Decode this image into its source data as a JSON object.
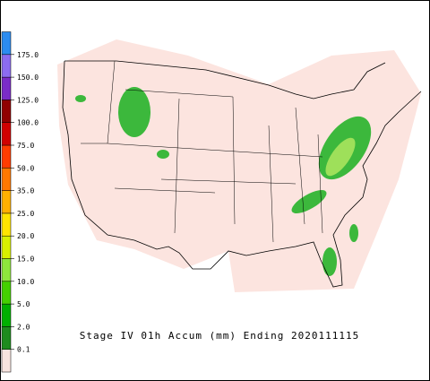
{
  "legend": {
    "labels": [
      "0.1",
      "2.0",
      "5.0",
      "10.0",
      "15.0",
      "20.0",
      "25.0",
      "35.0",
      "50.0",
      "75.0",
      "100.0",
      "125.0",
      "150.0",
      "175.0"
    ],
    "colors": [
      "#f8e4df",
      "#1e8c1e",
      "#00b000",
      "#44d000",
      "#8ee63c",
      "#d8f000",
      "#ffe400",
      "#ffb000",
      "#ff7800",
      "#ff3c00",
      "#d00000",
      "#900000",
      "#7a2cc8",
      "#8c6cf0",
      "#2c8cf0"
    ]
  },
  "caption": "Stage IV 01h Accum (mm) Ending 2020111115"
}
